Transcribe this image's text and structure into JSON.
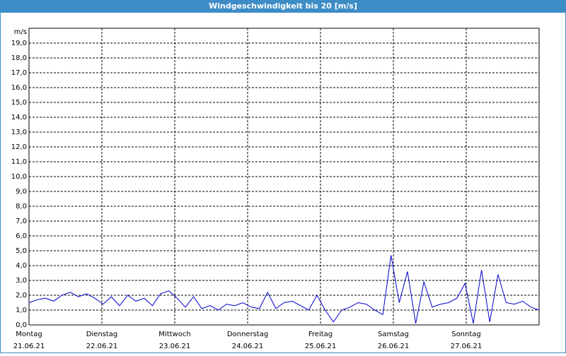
{
  "chart_data": {
    "type": "line",
    "title": "Windgeschwindigkeit bis 20 [m/s]",
    "y_unit": "m/s",
    "xlim": [
      0,
      7
    ],
    "xticks": [
      0,
      1,
      2,
      3,
      4,
      5,
      6
    ],
    "xtick_labels": [
      {
        "day": "Montag",
        "date": "21.06.21"
      },
      {
        "day": "Dienstag",
        "date": "22.06.21"
      },
      {
        "day": "Mittwoch",
        "date": "23.06.21"
      },
      {
        "day": "Donnerstag",
        "date": "24.06.21"
      },
      {
        "day": "Freitag",
        "date": "25.06.21"
      },
      {
        "day": "Samstag",
        "date": "26.06.21"
      },
      {
        "day": "Sonntag",
        "date": "27.06.21"
      }
    ],
    "ylim": [
      0,
      20
    ],
    "yticks": [
      {
        "value": 0,
        "label": "0,0"
      },
      {
        "value": 1,
        "label": "1,0"
      },
      {
        "value": 2,
        "label": "2,0"
      },
      {
        "value": 3,
        "label": "3,0"
      },
      {
        "value": 4,
        "label": "4,0"
      },
      {
        "value": 5,
        "label": "5,0"
      },
      {
        "value": 6,
        "label": "6,0"
      },
      {
        "value": 7,
        "label": "7,0"
      },
      {
        "value": 8,
        "label": "8,0"
      },
      {
        "value": 9,
        "label": "9,0"
      },
      {
        "value": 10,
        "label": "10,0"
      },
      {
        "value": 11,
        "label": "11,0"
      },
      {
        "value": 12,
        "label": "12,0"
      },
      {
        "value": 13,
        "label": "13,0"
      },
      {
        "value": 14,
        "label": "14,0"
      },
      {
        "value": 15,
        "label": "15,0"
      },
      {
        "value": 16,
        "label": "16,0"
      },
      {
        "value": 17,
        "label": "17,0"
      },
      {
        "value": 18,
        "label": "18,0"
      },
      {
        "value": 19,
        "label": "19,0"
      }
    ],
    "grid": true,
    "color": "#0000cc",
    "values": [
      1.5,
      1.7,
      1.8,
      1.6,
      2.0,
      2.2,
      1.9,
      2.1,
      1.8,
      1.4,
      1.9,
      1.3,
      2.0,
      1.6,
      1.8,
      1.3,
      2.1,
      2.3,
      1.8,
      1.2,
      1.9,
      1.1,
      1.3,
      1.0,
      1.4,
      1.3,
      1.5,
      1.2,
      1.1,
      2.2,
      1.1,
      1.5,
      1.6,
      1.3,
      1.0,
      2.0,
      1.0,
      0.2,
      1.0,
      1.2,
      1.5,
      1.4,
      1.0,
      0.7,
      4.7,
      1.5,
      3.6,
      0.1,
      2.9,
      1.2,
      1.4,
      1.5,
      1.8,
      2.8,
      0.1,
      3.7,
      0.2,
      3.4,
      1.5,
      1.4,
      1.6,
      1.2,
      1.0
    ]
  }
}
